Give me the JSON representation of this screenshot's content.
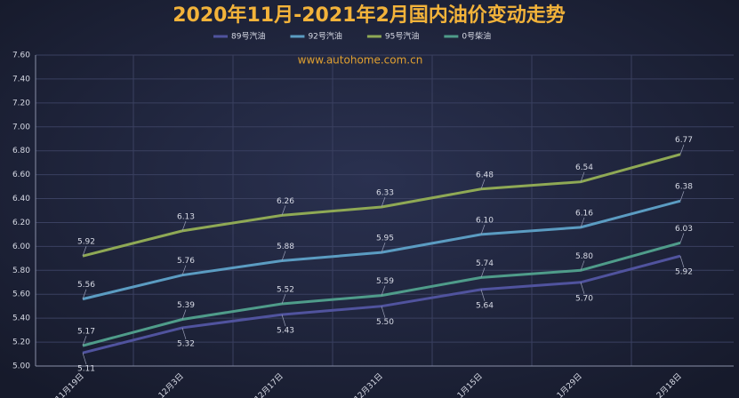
{
  "chart_data": {
    "type": "line",
    "title": "2020年11月-2021年2月国内油价变动走势",
    "annotation": "www.autohome.com.cn",
    "categories": [
      "11月19日",
      "12月3日",
      "12月17日",
      "12月31日",
      "1月15日",
      "1月29日",
      "2月18日"
    ],
    "series": [
      {
        "name": "89号汽油",
        "color": "#50539e",
        "label_pos": "below",
        "values": [
          5.11,
          5.32,
          5.43,
          5.5,
          5.64,
          5.7,
          5.92
        ],
        "value_labels": [
          "5.11",
          "5.32",
          "5.43",
          "5.50",
          "5.64",
          "5.70",
          "5.92"
        ]
      },
      {
        "name": "92号汽油",
        "color": "#5b9cc2",
        "label_pos": "above",
        "values": [
          5.56,
          5.76,
          5.88,
          5.95,
          6.1,
          6.16,
          6.38
        ],
        "value_labels": [
          "5.56",
          "5.76",
          "5.88",
          "5.95",
          "6.10",
          "6.16",
          "6.38"
        ]
      },
      {
        "name": "95号汽油",
        "color": "#8fa955",
        "label_pos": "above",
        "values": [
          5.92,
          6.13,
          6.26,
          6.33,
          6.48,
          6.54,
          6.77
        ],
        "value_labels": [
          "5.92",
          "6.13",
          "6.26",
          "6.33",
          "6.48",
          "6.54",
          "6.77"
        ]
      },
      {
        "name": "0号柴油",
        "color": "#4f9c8a",
        "label_pos": "above",
        "values": [
          5.17,
          5.39,
          5.52,
          5.59,
          5.74,
          5.8,
          6.03
        ],
        "value_labels": [
          "5.17",
          "5.39",
          "5.52",
          "5.59",
          "5.74",
          "5.80",
          "6.03"
        ]
      }
    ],
    "ylim": [
      5,
      7.6
    ],
    "yticks": [
      {
        "value": 5,
        "label": "5.00"
      },
      {
        "value": 5.2,
        "label": "5.20"
      },
      {
        "value": 5.4,
        "label": "5.40"
      },
      {
        "value": 5.6,
        "label": "5.60"
      },
      {
        "value": 5.8,
        "label": "5.80"
      },
      {
        "value": 6,
        "label": "6.00"
      },
      {
        "value": 6.2,
        "label": "6.20"
      },
      {
        "value": 6.4,
        "label": "6.40"
      },
      {
        "value": 6.6,
        "label": "6.60"
      },
      {
        "value": 6.8,
        "label": "6.80"
      },
      {
        "value": 7,
        "label": "7.00"
      },
      {
        "value": 7.2,
        "label": "7.20"
      },
      {
        "value": 7.4,
        "label": "7.40"
      },
      {
        "value": 7.6,
        "label": "7.60"
      }
    ],
    "grid": true
  }
}
